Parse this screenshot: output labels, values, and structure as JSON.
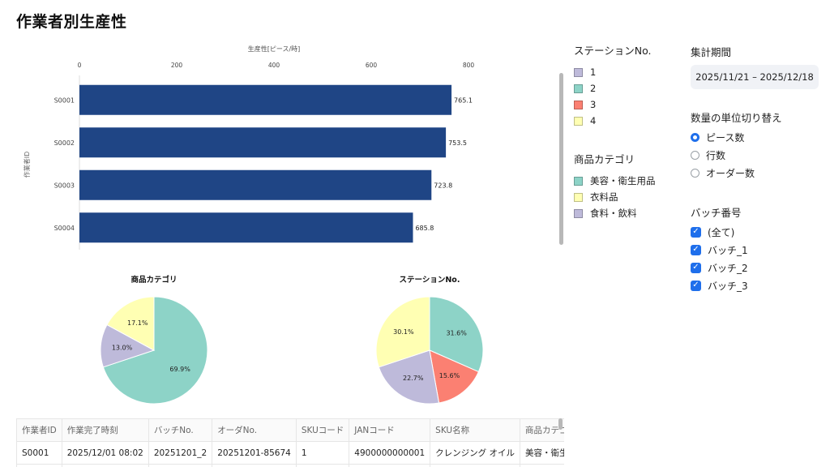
{
  "page": {
    "title": "作業者別生産性"
  },
  "chart_data": [
    {
      "type": "bar",
      "orientation": "horizontal",
      "title": "",
      "xlabel": "生産性[ピース/時]",
      "ylabel": "作業者ID",
      "xlim": [
        0,
        800
      ],
      "xticks": [
        "0",
        "200",
        "400",
        "600",
        "800"
      ],
      "categories": [
        "S0001",
        "S0002",
        "S0003",
        "S0004"
      ],
      "values": [
        765.1,
        753.5,
        723.8,
        685.8
      ],
      "data_labels": [
        "765.1",
        "753.5",
        "723.8",
        "685.8"
      ],
      "bar_color": "#1f4585",
      "xaxis_position": "top"
    },
    {
      "type": "pie",
      "title": "商品カテゴリ",
      "slices": [
        {
          "label": "美容・衛生用品",
          "value": 69.9,
          "display": "69.9%",
          "color": "#8dd3c7"
        },
        {
          "label": "食料・飲料",
          "value": 13.0,
          "display": "13.0%",
          "color": "#bebada"
        },
        {
          "label": "衣料品",
          "value": 17.1,
          "display": "17.1%",
          "color": "#ffffb3"
        }
      ]
    },
    {
      "type": "pie",
      "title": "ステーションNo.",
      "slices": [
        {
          "label": "2",
          "value": 31.6,
          "display": "31.6%",
          "color": "#8dd3c7"
        },
        {
          "label": "3",
          "value": 15.6,
          "display": "15.6%",
          "color": "#fb8072"
        },
        {
          "label": "1",
          "value": 22.7,
          "display": "22.7%",
          "color": "#bebada"
        },
        {
          "label": "4",
          "value": 30.1,
          "display": "30.1%",
          "color": "#ffffb3"
        }
      ]
    }
  ],
  "legend": {
    "station_title": "ステーションNo.",
    "station_items": [
      {
        "label": "1",
        "color": "#bebada"
      },
      {
        "label": "2",
        "color": "#8dd3c7"
      },
      {
        "label": "3",
        "color": "#fb8072"
      },
      {
        "label": "4",
        "color": "#ffffb3"
      }
    ],
    "category_title": "商品カテゴリ",
    "category_items": [
      {
        "label": "美容・衛生用品",
        "color": "#8dd3c7"
      },
      {
        "label": "衣料品",
        "color": "#ffffb3"
      },
      {
        "label": "食料・飲料",
        "color": "#bebada"
      }
    ]
  },
  "filters": {
    "period_title": "集計期間",
    "period_value": "2025/11/21 – 2025/12/18",
    "unit_title": "数量の単位切り替え",
    "unit_options": [
      {
        "label": "ピース数",
        "selected": true
      },
      {
        "label": "行数",
        "selected": false
      },
      {
        "label": "オーダー数",
        "selected": false
      }
    ],
    "batch_title": "バッチ番号",
    "batch_options": [
      {
        "label": "(全て)",
        "checked": true
      },
      {
        "label": "バッチ_1",
        "checked": true
      },
      {
        "label": "バッチ_2",
        "checked": true
      },
      {
        "label": "バッチ_3",
        "checked": true
      }
    ]
  },
  "table": {
    "columns": [
      "作業者ID",
      "作業完了時刻",
      "バッチNo.",
      "オーダNo.",
      "SKUコード",
      "JANコード",
      "SKU名称",
      "商品カテゴリ"
    ],
    "rows": [
      [
        "S0001",
        "2025/12/01 08:02",
        "20251201_2",
        "20251201-85674",
        "1",
        "4900000000001",
        "クレンジング オイル",
        "美容・衛生用品"
      ]
    ]
  },
  "colors": {
    "accent": "#1f6feb",
    "bar": "#1f4585"
  }
}
